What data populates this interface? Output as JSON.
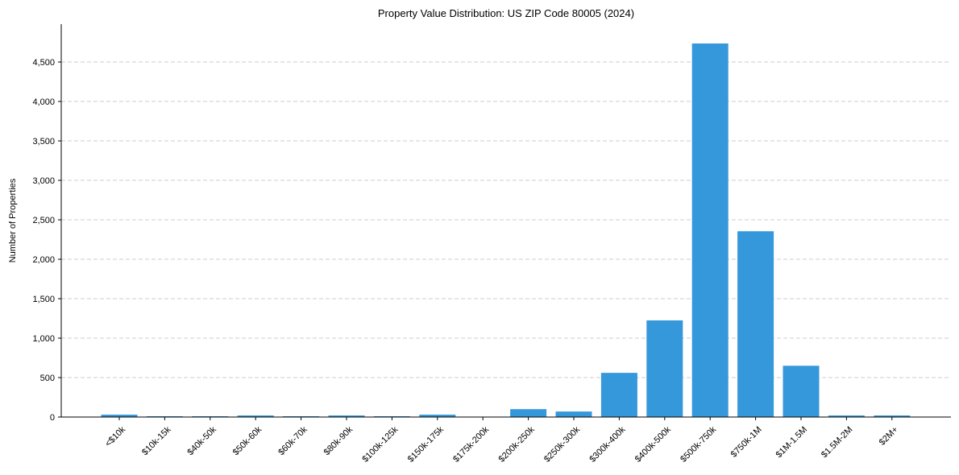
{
  "chart_data": {
    "type": "bar",
    "title": "Property Value Distribution: US ZIP Code 80005 (2024)",
    "xlabel": "",
    "ylabel": "Number of Properties",
    "categories": [
      "<$10k",
      "$10k-15k",
      "$40k-50k",
      "$50k-60k",
      "$60k-70k",
      "$80k-90k",
      "$100k-125k",
      "$150k-175k",
      "$175k-200k",
      "$200k-250k",
      "$250k-300k",
      "$300k-400k",
      "$400k-500k",
      "$500k-750k",
      "$750k-1M",
      "$1M-1.5M",
      "$1.5M-2M",
      "$2M+"
    ],
    "values": [
      30,
      10,
      10,
      20,
      10,
      20,
      10,
      30,
      0,
      100,
      70,
      560,
      1225,
      4735,
      2355,
      650,
      20,
      20
    ],
    "ylim": [
      0,
      4980
    ],
    "yticks": [
      0,
      500,
      1000,
      1500,
      2000,
      2500,
      3000,
      3500,
      4000,
      4500
    ],
    "ytick_labels": [
      "0",
      "500",
      "1,000",
      "1,500",
      "2,000",
      "2,500",
      "3,000",
      "3,500",
      "4,000",
      "4,500"
    ],
    "grid": "y-dashed",
    "bar_color": "#3498db"
  }
}
